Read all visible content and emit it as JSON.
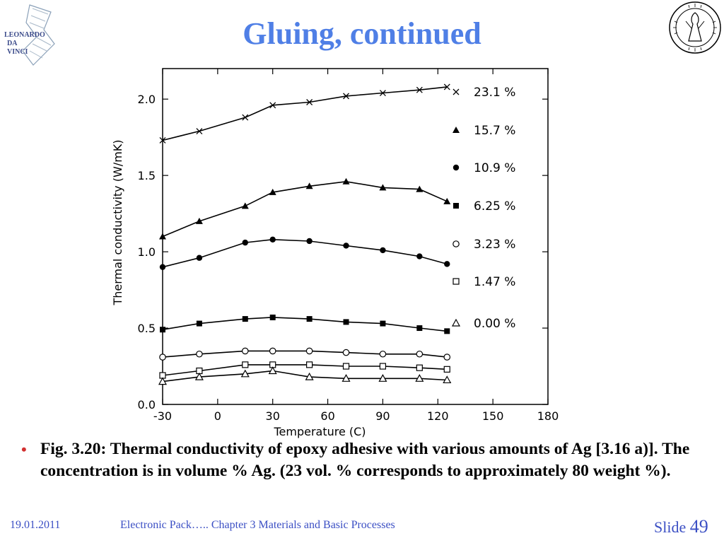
{
  "slide": {
    "title": "Gluing, continued",
    "caption": "Fig. 3.20: Thermal conductivity of epoxy adhesive with various amounts of Ag [3.16 a)]. The concentration is in volume % Ag. (23 vol. % corresponds to approximately 80 weight  %).",
    "bullet": "•",
    "footer_date": "19.01.2011",
    "footer_course": "Electronic Pack…..   Chapter 3 Materials and Basic Processes",
    "footer_slide_label": "Slide",
    "footer_slide_number": "49",
    "logo_left_text": [
      "LEONARDO",
      "DA",
      "VINCI"
    ],
    "accent_color": "#4f7fe6",
    "footer_color": "#3b4fc4"
  },
  "chart_data": {
    "type": "line",
    "xlabel": "Temperature (C)",
    "ylabel": "Thermal conductivity (W/mK)",
    "xlim": [
      -30,
      180
    ],
    "ylim": [
      0.0,
      2.2
    ],
    "xticks": [
      "-30",
      "0",
      "30",
      "60",
      "90",
      "120",
      "150",
      "180"
    ],
    "yticks": [
      "0.0",
      "0.5",
      "1.0",
      "1.5",
      "2.0"
    ],
    "x": [
      -30,
      -10,
      15,
      30,
      50,
      70,
      90,
      110,
      125
    ],
    "series": [
      {
        "name": "23.1 %",
        "marker": "x",
        "x": [
          -30,
          -10,
          15,
          30,
          50,
          70,
          90,
          110,
          125
        ],
        "values": [
          1.73,
          1.79,
          1.88,
          1.96,
          1.98,
          2.02,
          2.04,
          2.06,
          2.08
        ]
      },
      {
        "name": "15.7 %",
        "marker": "filled-triangle",
        "x": [
          -30,
          -10,
          15,
          30,
          50,
          70,
          90,
          110,
          125
        ],
        "values": [
          1.1,
          1.2,
          1.3,
          1.39,
          1.43,
          1.46,
          1.42,
          1.41,
          1.33
        ]
      },
      {
        "name": "10.9 %",
        "marker": "filled-circle",
        "x": [
          -30,
          -10,
          15,
          30,
          50,
          70,
          90,
          110,
          125
        ],
        "values": [
          0.9,
          0.96,
          1.06,
          1.08,
          1.07,
          1.04,
          1.01,
          0.97,
          0.92
        ]
      },
      {
        "name": "6.25 %",
        "marker": "filled-square",
        "x": [
          -30,
          -10,
          15,
          30,
          50,
          70,
          90,
          110,
          125
        ],
        "values": [
          0.49,
          0.53,
          0.56,
          0.57,
          0.56,
          0.54,
          0.53,
          0.5,
          0.48
        ]
      },
      {
        "name": "3.23 %",
        "marker": "open-circle",
        "x": [
          -30,
          -10,
          15,
          30,
          50,
          70,
          90,
          110,
          125
        ],
        "values": [
          0.31,
          0.33,
          0.35,
          0.35,
          0.35,
          0.34,
          0.33,
          0.33,
          0.31
        ]
      },
      {
        "name": "1.47 %",
        "marker": "open-square",
        "x": [
          -30,
          -10,
          15,
          30,
          50,
          70,
          90,
          110,
          125
        ],
        "values": [
          0.19,
          0.22,
          0.26,
          0.26,
          0.26,
          0.25,
          0.25,
          0.24,
          0.23
        ]
      },
      {
        "name": "0.00 %",
        "marker": "open-triangle",
        "x": [
          -30,
          -10,
          15,
          30,
          50,
          70,
          90,
          110,
          125
        ],
        "values": [
          0.15,
          0.18,
          0.2,
          0.22,
          0.18,
          0.17,
          0.17,
          0.17,
          0.16
        ]
      }
    ],
    "legend_position": "right",
    "grid": false
  }
}
